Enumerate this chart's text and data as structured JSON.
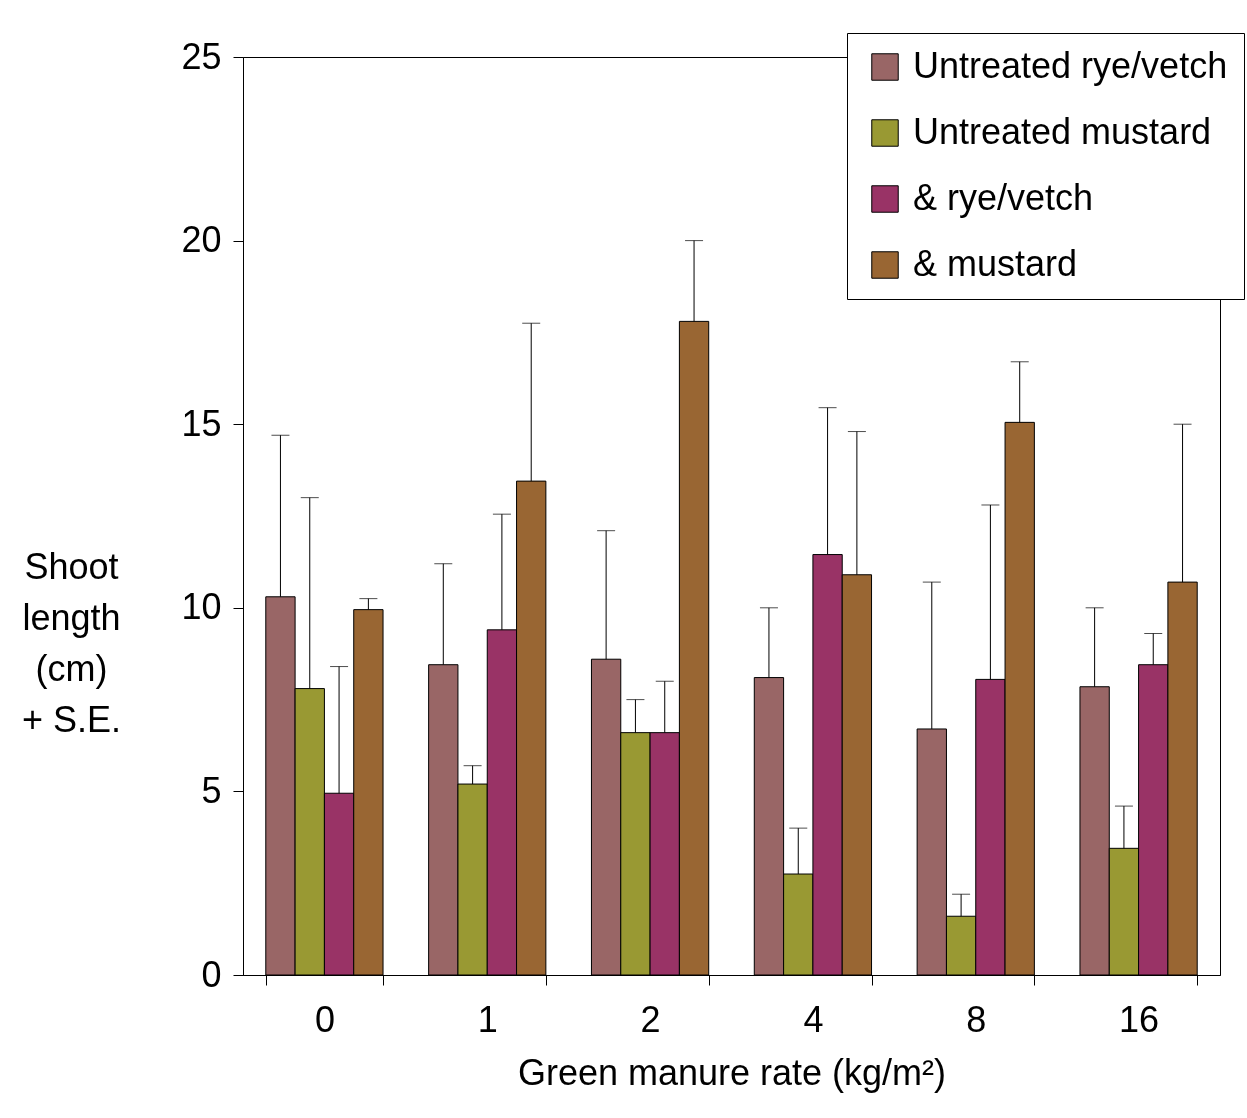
{
  "chart_data": {
    "type": "bar",
    "xlabel": "Green manure rate (kg/m²)",
    "ylabel": "Shoot length (cm) + S.E.",
    "categories": [
      "0",
      "1",
      "2",
      "4",
      "8",
      "16"
    ],
    "series": [
      {
        "name": "Untreated rye/vetch",
        "color": "#996666",
        "values": [
          10.3,
          8.45,
          8.6,
          8.1,
          6.7,
          7.85
        ],
        "errors": [
          [
            10.3,
            14.7
          ],
          [
            8.45,
            11.2
          ],
          [
            8.6,
            12.1
          ],
          [
            8.1,
            10
          ],
          [
            6.7,
            10.7
          ],
          [
            7.85,
            10
          ]
        ]
      },
      {
        "name": "Untreated mustard",
        "color": "#999933",
        "values": [
          7.8,
          5.2,
          6.6,
          2.75,
          1.6,
          3.45
        ],
        "errors": [
          [
            7.8,
            13
          ],
          [
            5.2,
            5.7
          ],
          [
            6.6,
            7.5
          ],
          [
            2.75,
            4
          ],
          [
            1.6,
            2.2
          ],
          [
            3.45,
            4.6
          ]
        ]
      },
      {
        "name": "& rye/vetch",
        "color": "#993366",
        "values": [
          4.95,
          9.4,
          6.6,
          11.45,
          8.05,
          8.45
        ],
        "errors": [
          [
            4.95,
            8.4
          ],
          [
            9.4,
            12.55
          ],
          [
            6.6,
            8
          ],
          [
            11.45,
            15.45
          ],
          [
            8.05,
            12.8
          ],
          [
            8.45,
            9.3
          ]
        ]
      },
      {
        "name": "& mustard",
        "color": "#996633",
        "values": [
          9.95,
          13.45,
          17.8,
          10.9,
          15.05,
          10.7
        ],
        "errors": [
          [
            9.95,
            10.25
          ],
          [
            13.45,
            17.75
          ],
          [
            17.8,
            20
          ],
          [
            10.9,
            14.8
          ],
          [
            15.05,
            16.7
          ],
          [
            10.7,
            15
          ]
        ]
      }
    ],
    "ylim": [
      0,
      25
    ],
    "yticks": [
      0,
      5,
      10,
      15,
      20,
      25
    ],
    "grid": false,
    "legend": "top right"
  }
}
